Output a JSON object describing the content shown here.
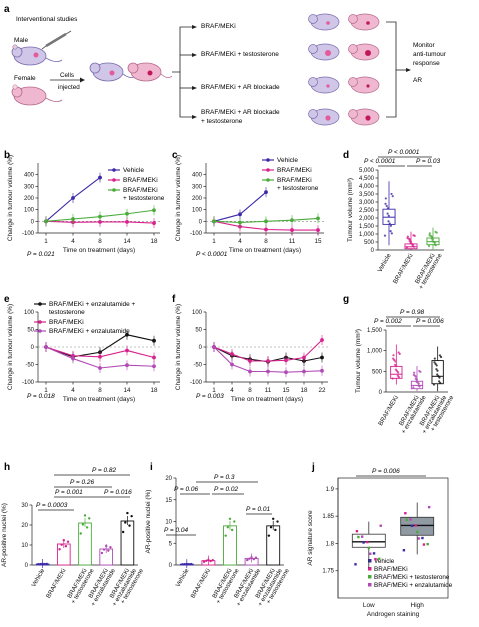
{
  "panels": {
    "a": {
      "letter": "a",
      "heading": "Interventional studies",
      "male": "Male",
      "female": "Female",
      "cells1": "Cells",
      "cells2": "injected",
      "treat1": "BRAF/MEKi",
      "treat2": "BRAF/MEKi + testosterone",
      "treat3": "BRAF/MEKi + AR blockade",
      "treat4a": "BRAF/MEKi + AR blockade",
      "treat4b": "+ testosterone",
      "monitor1": "Monitor",
      "monitor2": "anti-tumour",
      "monitor3": "response",
      "ar": "AR"
    },
    "b": {
      "letter": "b",
      "pval": "P = 0.021"
    },
    "c": {
      "letter": "c",
      "pval": "P < 0.0001"
    },
    "d": {
      "letter": "d",
      "p1": "P < 0.0001",
      "p2": "P < 0.0001",
      "p3": "P = 0.03"
    },
    "e": {
      "letter": "e",
      "pval": "P = 0.018"
    },
    "f": {
      "letter": "f",
      "pval": "P = 0.003"
    },
    "g": {
      "letter": "g",
      "p1": "P = 0.98",
      "p2": "P = 0.002",
      "p3": "P = 0.006"
    },
    "h": {
      "letter": "h",
      "p1": "P = 0.82",
      "p2": "P = 0.26",
      "p3": "P = 0.001",
      "p4": "P = 0.016",
      "p5": "P = 0.0003"
    },
    "i": {
      "letter": "i",
      "p1": "P = 0.3",
      "p2": "P = 0.06",
      "p3": "P = 0.02",
      "p4": "P = 0.01",
      "p5": "P = 0.04"
    },
    "j": {
      "letter": "j",
      "pval": "P = 0.006"
    }
  },
  "axis_text": {
    "xlabel_days": "Time on treatment (days)",
    "ylabel_change": "Change in tumour volume (%)",
    "ylabel_volume": "Tumour volume (mm³)",
    "ylabel_ar": "AR-positive nuclei (%)",
    "ylabel_sig": "AR signature score",
    "xlabel_androgen": "Androgen staining",
    "low": "Low",
    "high": "High"
  },
  "legend_text": {
    "vehicle": "Vehicle",
    "brafmeki": "BRAF/MEKi",
    "bm_testo_1": "BRAF/MEKi",
    "bm_testo_2": "+ testosterone",
    "bm_enza_testo_1": "BRAF/MEKi + enzalutamide +",
    "bm_enza_testo_2": "testosterone",
    "bm_enza": "BRAF/MEKi + enzalutamide",
    "bm_testo": "BRAF/MEKi + testosterone"
  },
  "colors": {
    "vehicle": "#3b2aa8",
    "brafmeki": "#d8218c",
    "testosterone": "#4aab3a",
    "enza_testo": "#111111",
    "enza": "#b04ab5",
    "box_j": "#8f9aa3"
  },
  "chart_data": [
    {
      "id": "b",
      "type": "line",
      "xlabel": "Time on treatment (days)",
      "ylabel": "Change in tumour volume (%)",
      "x_ticks": [
        "1",
        "4",
        "8",
        "14",
        "18"
      ],
      "ylim": [
        -100,
        500
      ],
      "y_ticks": [
        -100,
        0,
        100,
        200,
        300,
        400
      ],
      "series": [
        {
          "name": "Vehicle",
          "color": "#3b2aa8",
          "x": [
            1,
            4,
            8
          ],
          "y": [
            0,
            200,
            375
          ]
        },
        {
          "name": "BRAF/MEKi",
          "color": "#d8218c",
          "x": [
            1,
            4,
            8,
            14,
            18
          ],
          "y": [
            0,
            -8,
            -5,
            -5,
            -15
          ]
        },
        {
          "name": "BRAF/MEKi + testosterone",
          "color": "#4aab3a",
          "x": [
            1,
            4,
            8,
            14,
            18
          ],
          "y": [
            0,
            20,
            40,
            65,
            95
          ]
        }
      ]
    },
    {
      "id": "c",
      "type": "line",
      "xlabel": "Time on treatment (days)",
      "ylabel": "Change in tumour volume (%)",
      "x_ticks": [
        "1",
        "4",
        "8",
        "11",
        "15"
      ],
      "ylim": [
        -100,
        500
      ],
      "y_ticks": [
        -100,
        0,
        100,
        200,
        300,
        400
      ],
      "series": [
        {
          "name": "Vehicle",
          "color": "#3b2aa8",
          "x": [
            1,
            4,
            8
          ],
          "y": [
            0,
            60,
            250
          ]
        },
        {
          "name": "BRAF/MEKi",
          "color": "#d8218c",
          "x": [
            1,
            4,
            8,
            11,
            15
          ],
          "y": [
            0,
            -45,
            -70,
            -75,
            -75
          ]
        },
        {
          "name": "BRAF/MEKi + testosterone",
          "color": "#4aab3a",
          "x": [
            1,
            4,
            8,
            11,
            15
          ],
          "y": [
            0,
            -10,
            0,
            10,
            25
          ]
        }
      ]
    },
    {
      "id": "d",
      "type": "box",
      "ylabel": "Tumour volume (mm³)",
      "ylim": [
        0,
        5000
      ],
      "y_ticks": [
        0,
        500,
        1000,
        1500,
        2000,
        2500,
        3000,
        3500,
        4000,
        4500,
        5000
      ],
      "groups": [
        {
          "name": "Vehicle",
          "color": "#3b2aa8",
          "q1": 1600,
          "median": 2050,
          "q3": 2550,
          "min": 300,
          "max": 4300
        },
        {
          "name": "BRAF/MEKi",
          "color": "#d8218c",
          "q1": 80,
          "median": 200,
          "q3": 380,
          "min": 0,
          "max": 1150
        },
        {
          "name": "BRAF/MEKi + testosterone",
          "color": "#4aab3a",
          "q1": 330,
          "median": 520,
          "q3": 750,
          "min": 50,
          "max": 1400
        }
      ]
    },
    {
      "id": "e",
      "type": "line",
      "xlabel": "Time on treatment (days)",
      "ylabel": "Change in tumour volume (%)",
      "x_ticks": [
        "1",
        "4",
        "8",
        "14",
        "18"
      ],
      "ylim": [
        -100,
        100
      ],
      "y_ticks": [
        -100,
        -50,
        0,
        50,
        100
      ],
      "series": [
        {
          "name": "BRAF/MEKi + enzalutamide + testosterone",
          "color": "#111111",
          "x": [
            1,
            4,
            8,
            14,
            18
          ],
          "y": [
            0,
            -28,
            -15,
            35,
            18
          ]
        },
        {
          "name": "BRAF/MEKi",
          "color": "#d8218c",
          "x": [
            1,
            4,
            8,
            14,
            18
          ],
          "y": [
            0,
            -25,
            -28,
            -10,
            -30
          ]
        },
        {
          "name": "BRAF/MEKi + enzalutamide",
          "color": "#b04ab5",
          "x": [
            1,
            4,
            8,
            14,
            18
          ],
          "y": [
            0,
            -33,
            -60,
            -52,
            -55
          ]
        }
      ]
    },
    {
      "id": "f",
      "type": "line",
      "xlabel": "Time on treatment (days)",
      "ylabel": "Change in tumour volume (%)",
      "x_ticks": [
        "1",
        "4",
        "8",
        "11",
        "15",
        "18",
        "22"
      ],
      "ylim": [
        -100,
        100
      ],
      "y_ticks": [
        -100,
        -50,
        0,
        50,
        100
      ],
      "series": [
        {
          "name": "BRAF/MEKi + enzalutamide + testosterone",
          "color": "#111111",
          "x": [
            1,
            4,
            8,
            11,
            15,
            18,
            22
          ],
          "y": [
            0,
            -25,
            -35,
            -42,
            -30,
            -40,
            -30
          ]
        },
        {
          "name": "BRAF/MEKi",
          "color": "#d8218c",
          "x": [
            1,
            4,
            8,
            11,
            15,
            18,
            22
          ],
          "y": [
            0,
            -20,
            -40,
            -40,
            -38,
            -30,
            20
          ]
        },
        {
          "name": "BRAF/MEKi + enzalutamide",
          "color": "#b04ab5",
          "x": [
            1,
            4,
            8,
            11,
            15,
            18,
            22
          ],
          "y": [
            0,
            -50,
            -70,
            -70,
            -72,
            -70,
            -68
          ]
        }
      ]
    },
    {
      "id": "g",
      "type": "box",
      "ylabel": "Tumour volume (mm³)",
      "ylim": [
        0,
        1500
      ],
      "y_ticks": [
        0,
        500,
        1000,
        1500
      ],
      "groups": [
        {
          "name": "BRAF/MEKi",
          "color": "#d8218c",
          "q1": 330,
          "median": 430,
          "q3": 620,
          "min": 180,
          "max": 1150
        },
        {
          "name": "BRAF/MEKi + enzalutamide",
          "color": "#b04ab5",
          "q1": 80,
          "median": 160,
          "q3": 260,
          "min": 20,
          "max": 630
        },
        {
          "name": "BRAF/MEKi + enzalutamide + testosterone",
          "color": "#111111",
          "q1": 200,
          "median": 380,
          "q3": 760,
          "min": 20,
          "max": 1100
        }
      ]
    },
    {
      "id": "h",
      "type": "bar",
      "ylabel": "AR-positive nuclei (%)",
      "ylim": [
        0,
        30
      ],
      "y_ticks": [
        0,
        10,
        20,
        30
      ],
      "categories": [
        "Vehicle",
        "BRAF/MEKi",
        "BRAF/MEKi + testosterone",
        "BRAF/MEKi + enzalutamide",
        "BRAF/MEKi + enzalutamide + testosterone"
      ],
      "values": [
        0.5,
        10.5,
        21,
        8,
        22
      ],
      "colors": [
        "#3b2aa8",
        "#d8218c",
        "#4aab3a",
        "#b04ab5",
        "#111111"
      ]
    },
    {
      "id": "i",
      "type": "bar",
      "ylabel": "AR-positive nuclei (%)",
      "ylim": [
        0,
        20
      ],
      "y_ticks": [
        0,
        5,
        10,
        15,
        20
      ],
      "categories": [
        "Vehicle",
        "BRAF/MEKi",
        "BRAF/MEKi + testosterone",
        "BRAF/MEKi + enzalutamide",
        "BRAF/MEKi + enzalutamide + testosterone"
      ],
      "values": [
        0.2,
        1.0,
        9.0,
        1.5,
        9.0
      ],
      "colors": [
        "#3b2aa8",
        "#d8218c",
        "#4aab3a",
        "#b04ab5",
        "#111111"
      ]
    },
    {
      "id": "j",
      "type": "box",
      "xlabel": "Androgen staining",
      "ylabel": "AR signature score",
      "ylim": [
        1.7,
        1.92
      ],
      "y_ticks": [
        1.75,
        1.8,
        1.85,
        1.9
      ],
      "categories": [
        "Low",
        "High"
      ],
      "groups": [
        {
          "name": "Low",
          "q1": 1.793,
          "median": 1.803,
          "q3": 1.817,
          "min": 1.755,
          "max": 1.84
        },
        {
          "name": "High",
          "q1": 1.815,
          "median": 1.833,
          "q3": 1.848,
          "min": 1.78,
          "max": 1.875
        }
      ],
      "legend": [
        "Vehicle",
        "BRAF/MEKi",
        "BRAF/MEKi + testosterone",
        "BRAF/MEKi + enzalutamide"
      ]
    }
  ]
}
